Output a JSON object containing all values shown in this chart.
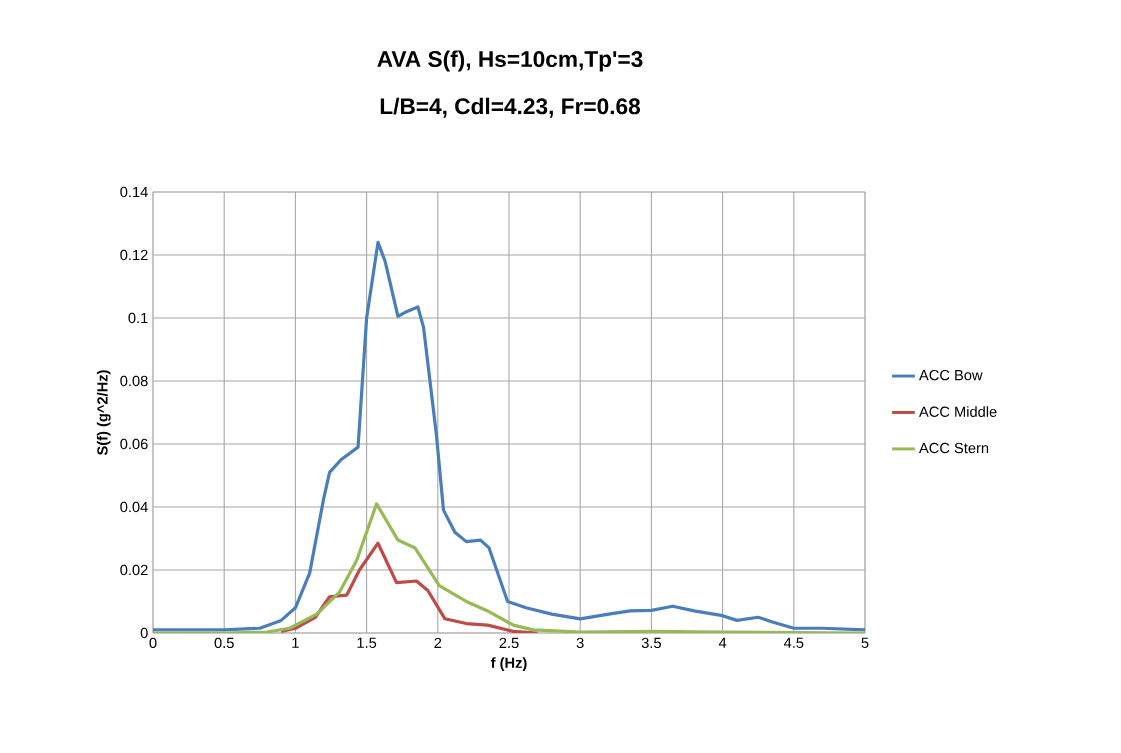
{
  "chart_data": {
    "type": "line",
    "title": "AVA S(f), Hs=10cm,Tp'=3",
    "subtitle": "L/B=4, Cdl=4.23, Fr=0.68",
    "xlabel": "f (Hz)",
    "ylabel": "S(f) (g^2/Hz)",
    "xlim": [
      0,
      5
    ],
    "ylim": [
      0,
      0.14
    ],
    "xticks": [
      0,
      0.5,
      1,
      1.5,
      2,
      2.5,
      3,
      3.5,
      4,
      4.5,
      5
    ],
    "yticks": [
      0,
      0.02,
      0.04,
      0.06,
      0.08,
      0.1,
      0.12,
      0.14
    ],
    "grid": true,
    "legend": "right",
    "marker": "none",
    "line_style": "solid",
    "series": [
      {
        "name": "ACC Bow",
        "color": "#4a7ebb",
        "x": [
          0,
          0.5,
          0.75,
          0.9,
          1.0,
          1.1,
          1.2,
          1.24,
          1.32,
          1.38,
          1.44,
          1.5,
          1.58,
          1.63,
          1.72,
          1.78,
          1.86,
          1.9,
          1.99,
          2.04,
          2.12,
          2.2,
          2.3,
          2.36,
          2.49,
          2.62,
          2.8,
          3.0,
          3.2,
          3.35,
          3.5,
          3.65,
          3.8,
          4.0,
          4.1,
          4.25,
          4.35,
          4.5,
          4.7,
          5
        ],
        "values": [
          0.001,
          0.001,
          0.0015,
          0.004,
          0.008,
          0.019,
          0.043,
          0.051,
          0.055,
          0.057,
          0.059,
          0.1,
          0.124,
          0.118,
          0.1005,
          0.102,
          0.1035,
          0.097,
          0.063,
          0.039,
          0.032,
          0.029,
          0.0295,
          0.027,
          0.01,
          0.008,
          0.006,
          0.0045,
          0.006,
          0.007,
          0.0072,
          0.0085,
          0.007,
          0.0055,
          0.004,
          0.005,
          0.0035,
          0.0015,
          0.0015,
          0.001
        ]
      },
      {
        "name": "ACC Middle",
        "color": "#be4b48",
        "x": [
          0.9,
          1.0,
          1.14,
          1.24,
          1.36,
          1.45,
          1.58,
          1.71,
          1.85,
          1.93,
          2.05,
          2.2,
          2.35,
          2.53,
          2.7
        ],
        "values": [
          0.0005,
          0.0015,
          0.005,
          0.0115,
          0.012,
          0.02,
          0.0285,
          0.016,
          0.0165,
          0.0135,
          0.0045,
          0.003,
          0.0025,
          0.0005,
          0
        ]
      },
      {
        "name": "ACC Stern",
        "color": "#98b954",
        "x": [
          0,
          0.5,
          0.8,
          0.96,
          1.15,
          1.31,
          1.43,
          1.57,
          1.72,
          1.84,
          2.01,
          2.2,
          2.35,
          2.53,
          2.67,
          3.0,
          3.5,
          4.0,
          5
        ],
        "values": [
          0,
          0,
          0.0003,
          0.0015,
          0.006,
          0.013,
          0.023,
          0.041,
          0.0295,
          0.027,
          0.015,
          0.01,
          0.007,
          0.0025,
          0.001,
          0.0003,
          0.0005,
          0.0003,
          0
        ]
      }
    ]
  }
}
